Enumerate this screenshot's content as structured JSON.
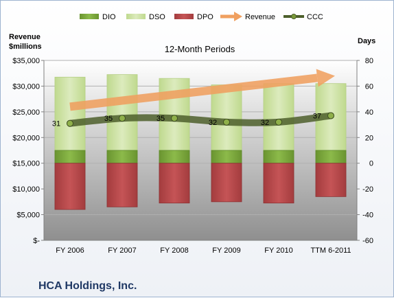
{
  "chart_data": {
    "type": "bar",
    "subtitle": "12-Month Periods",
    "company": "HCA Holdings, Inc.",
    "left_axis": {
      "title_line1": "Revenue",
      "title_line2": "$millions",
      "ticks": [
        "$-",
        "$5,000",
        "$10,000",
        "$15,000",
        "$20,000",
        "$25,000",
        "$30,000",
        "$35,000"
      ],
      "ylim": [
        0,
        35000
      ]
    },
    "right_axis": {
      "title": "Days",
      "ticks": [
        "-60",
        "-40",
        "-20",
        "0",
        "20",
        "40",
        "60",
        "80"
      ],
      "ylim": [
        -60,
        80
      ]
    },
    "categories": [
      "FY 2006",
      "FY 2007",
      "FY 2008",
      "FY 2009",
      "FY 2010",
      "TTM 6-2011"
    ],
    "legend": [
      "DIO",
      "DSO",
      "DPO",
      "Revenue",
      "CCC"
    ],
    "series": [
      {
        "name": "DIO",
        "axis": "days",
        "stack": "positive",
        "values": [
          10,
          10,
          10,
          10,
          10,
          10
        ]
      },
      {
        "name": "DSO",
        "axis": "days",
        "stack": "positive",
        "values": [
          57,
          59,
          56,
          51,
          52,
          52
        ]
      },
      {
        "name": "DPO",
        "axis": "days",
        "stack": "negative",
        "values": [
          -36,
          -34,
          -31,
          -30,
          -31,
          -26
        ]
      },
      {
        "name": "Revenue",
        "axis": "revenue",
        "type": "arrow",
        "values": [
          26000,
          27600,
          28800,
          30200,
          30800,
          32000
        ]
      },
      {
        "name": "CCC",
        "axis": "days",
        "type": "line",
        "values": [
          31,
          35,
          35,
          32,
          32,
          37
        ]
      }
    ],
    "ccc_labels": [
      "31",
      "35",
      "35",
      "32",
      "32",
      "37"
    ],
    "colors": {
      "dio": "#77a33b",
      "dso": "#cfe3a4",
      "dpo": "#b9484a",
      "revenue": "#f0a060",
      "ccc": "#4d5f2b",
      "plot_top": "#ffffff",
      "plot_bottom": "#8f8f8f",
      "company": "#1f3864"
    },
    "grid": true,
    "legend_position": "top"
  }
}
